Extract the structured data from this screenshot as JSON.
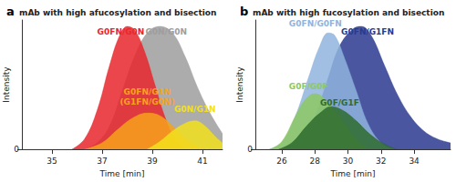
{
  "chart_data": [
    {
      "type": "area",
      "panel_label": "a",
      "title": "mAb with high afucosylation and bisection",
      "x_label": "Time [min]",
      "y_label": "Intensity",
      "xlim": [
        33.8,
        41.8
      ],
      "xticks": [
        35,
        37,
        39,
        41
      ],
      "ylim": [
        0,
        100
      ],
      "yticks": [
        0
      ],
      "grid": false,
      "series": [
        {
          "name": "G0N/G0N",
          "color": "#9e9e9e",
          "x": [
            36.3,
            36.8,
            37.3,
            37.8,
            38.3,
            38.8,
            39.3,
            39.8,
            40.3,
            40.8,
            41.3,
            41.8
          ],
          "values": [
            0,
            5,
            18,
            45,
            72,
            90,
            95,
            90,
            72,
            48,
            28,
            12
          ]
        },
        {
          "name": "G0FN/G0N",
          "color": "#e8262b",
          "x": [
            35.8,
            36.3,
            36.8,
            37.3,
            37.7,
            38.0,
            38.3,
            38.7,
            39.1,
            39.5,
            39.9,
            40.3
          ],
          "values": [
            0,
            8,
            30,
            65,
            88,
            95,
            92,
            75,
            50,
            25,
            8,
            0
          ]
        },
        {
          "name": "G0FN/G1N\n(G1FN/G0N)",
          "color": "#f7a21b",
          "x": [
            36.3,
            37.0,
            37.6,
            38.2,
            38.8,
            39.3,
            39.8,
            40.3,
            40.8,
            41.2
          ],
          "values": [
            0,
            5,
            15,
            24,
            28,
            26,
            18,
            8,
            2,
            0
          ]
        },
        {
          "name": "G0N/G1N",
          "color": "#f2e01c",
          "x": [
            38.8,
            39.3,
            39.8,
            40.3,
            40.7,
            41.1,
            41.5,
            41.8
          ],
          "values": [
            0,
            6,
            14,
            20,
            22,
            18,
            10,
            5
          ]
        }
      ]
    },
    {
      "type": "area",
      "panel_label": "b",
      "title": "mAb with high fucosylation and bisection",
      "x_label": "Time [min]",
      "y_label": "Intensity",
      "xlim": [
        24.4,
        36.2
      ],
      "xticks": [
        26,
        28,
        30,
        32,
        34
      ],
      "ylim": [
        0,
        100
      ],
      "yticks": [
        0
      ],
      "grid": false,
      "series": [
        {
          "name": "G0FN/G1FN",
          "color": "#2a3a8f",
          "x": [
            26.5,
            27.3,
            28.0,
            28.8,
            29.5,
            30.3,
            30.8,
            31.4,
            32.2,
            33.0,
            33.8,
            34.6,
            35.4,
            36.2
          ],
          "values": [
            0,
            8,
            25,
            55,
            80,
            93,
            95,
            88,
            65,
            42,
            25,
            14,
            8,
            5
          ]
        },
        {
          "name": "G0FN/G0FN",
          "color": "#8fb4dd",
          "x": [
            25.2,
            26.0,
            26.8,
            27.6,
            28.3,
            28.8,
            29.2,
            29.8,
            30.5,
            31.2,
            32.0,
            32.8
          ],
          "values": [
            0,
            5,
            25,
            55,
            80,
            90,
            88,
            70,
            45,
            20,
            5,
            0
          ]
        },
        {
          "name": "G0F/G0F",
          "color": "#8cc864",
          "x": [
            25.3,
            26.0,
            26.8,
            27.4,
            28.0,
            28.5,
            29.2,
            29.8,
            30.5,
            31.2
          ],
          "values": [
            0,
            6,
            25,
            38,
            43,
            40,
            30,
            20,
            8,
            0
          ]
        },
        {
          "name": "G0F/G1F",
          "color": "#2e6b2e",
          "x": [
            25.8,
            26.6,
            27.5,
            28.3,
            29.0,
            29.7,
            30.5,
            31.3,
            32.2,
            33.0
          ],
          "values": [
            0,
            5,
            18,
            28,
            33,
            30,
            22,
            12,
            4,
            0
          ]
        }
      ]
    }
  ]
}
